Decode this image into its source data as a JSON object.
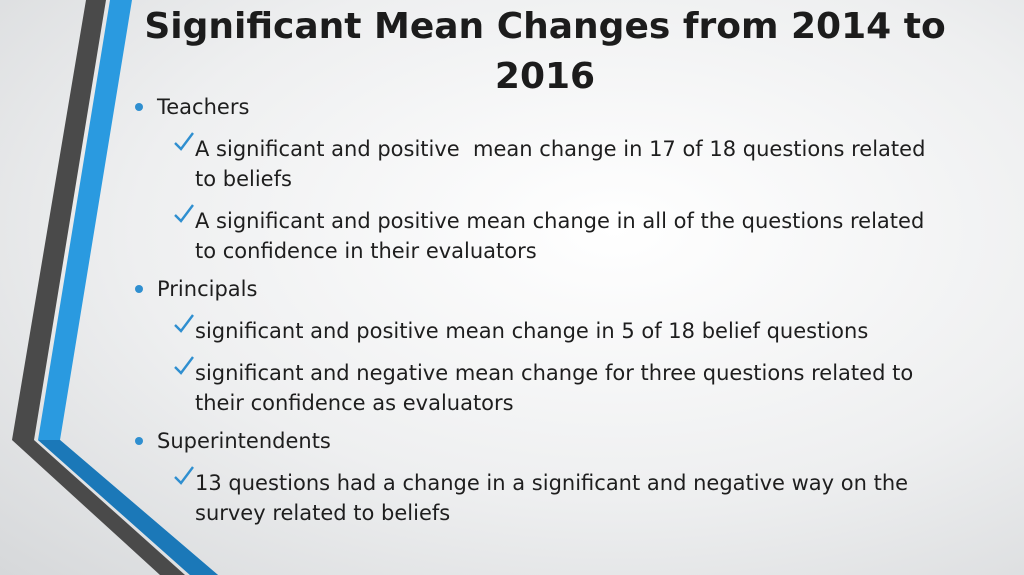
{
  "title": "Significant Mean Changes from 2014 to 2016",
  "sections": [
    {
      "label": "Teachers",
      "items": [
        "A significant and positive  mean change in 17 of 18 questions related to beliefs",
        "A significant and positive mean change in all of the questions related to confidence in their evaluators"
      ]
    },
    {
      "label": "Principals",
      "items": [
        "significant and positive mean change in 5 of 18 belief questions",
        "significant and negative mean change for three questions related to their confidence as evaluators"
      ]
    },
    {
      "label": "Superintendents",
      "items": [
        "13 questions had a change in a significant and negative way on the  survey related to beliefs"
      ]
    }
  ]
}
